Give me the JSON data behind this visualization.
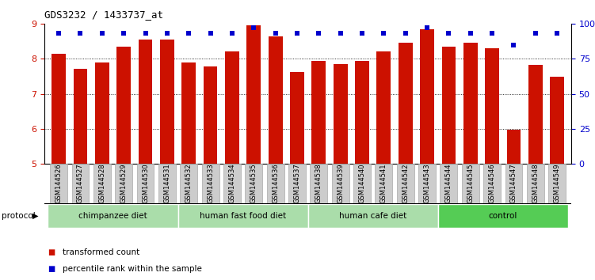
{
  "title": "GDS3232 / 1433737_at",
  "samples": [
    "GSM144526",
    "GSM144527",
    "GSM144528",
    "GSM144529",
    "GSM144530",
    "GSM144531",
    "GSM144532",
    "GSM144533",
    "GSM144534",
    "GSM144535",
    "GSM144536",
    "GSM144537",
    "GSM144538",
    "GSM144539",
    "GSM144540",
    "GSM144541",
    "GSM144542",
    "GSM144543",
    "GSM144544",
    "GSM144545",
    "GSM144546",
    "GSM144547",
    "GSM144548",
    "GSM144549"
  ],
  "bar_values": [
    8.15,
    7.72,
    7.9,
    8.35,
    8.55,
    8.55,
    7.9,
    7.78,
    8.2,
    8.95,
    8.65,
    7.62,
    7.95,
    7.85,
    7.95,
    8.2,
    8.45,
    8.85,
    8.35,
    8.45,
    8.3,
    5.98,
    7.82,
    7.48
  ],
  "percentile_values": [
    8.72,
    8.72,
    8.72,
    8.72,
    8.72,
    8.72,
    8.72,
    8.72,
    8.72,
    8.88,
    8.72,
    8.72,
    8.72,
    8.72,
    8.72,
    8.72,
    8.72,
    8.88,
    8.72,
    8.72,
    8.72,
    8.4,
    8.72,
    8.72
  ],
  "bar_color": "#cc1100",
  "percentile_color": "#0000cc",
  "ymin": 5,
  "ymax": 9,
  "yticks_left": [
    5,
    6,
    7,
    8,
    9
  ],
  "yticks_right_vals": [
    0,
    25,
    50,
    75,
    100
  ],
  "yticks_right_labels": [
    "0",
    "25",
    "50",
    "75",
    "100%"
  ],
  "groups": [
    {
      "label": "chimpanzee diet",
      "start": 0,
      "end": 6,
      "color": "#aaddaa"
    },
    {
      "label": "human fast food diet",
      "start": 6,
      "end": 12,
      "color": "#aaddaa"
    },
    {
      "label": "human cafe diet",
      "start": 12,
      "end": 18,
      "color": "#aaddaa"
    },
    {
      "label": "control",
      "start": 18,
      "end": 24,
      "color": "#55cc55"
    }
  ],
  "protocol_label": "protocol",
  "legend_bar_label": "transformed count",
  "legend_dot_label": "percentile rank within the sample",
  "background_color": "#ffffff"
}
